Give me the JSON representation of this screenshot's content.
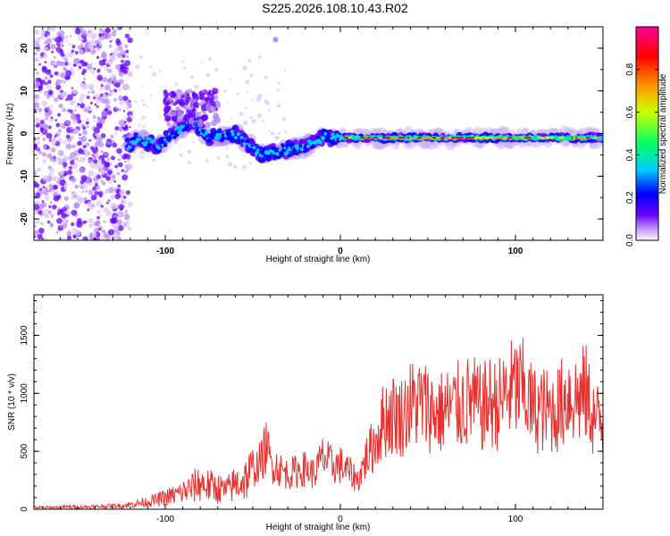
{
  "title": "S225.2026.108.10.43.R02",
  "chart_data": [
    {
      "type": "heatmap",
      "id": "spectrogram",
      "xlabel": "Height of straight line (km)",
      "ylabel": "Frequency (Hz)",
      "xlim": [
        -175,
        150
      ],
      "ylim": [
        -25,
        25
      ],
      "xticks": [
        -100,
        0,
        100
      ],
      "xtick_labels": [
        "-100",
        "0",
        "100"
      ],
      "yticks": [
        -20,
        -10,
        0,
        10,
        20
      ],
      "ytick_labels": [
        "-20",
        "-10",
        "0",
        "10",
        "20"
      ],
      "colorbar": {
        "label": "Normalized spectral amplitude",
        "range": [
          0,
          1
        ],
        "ticks": [
          0.0,
          0.2,
          0.4,
          0.6,
          0.8
        ],
        "tick_labels": [
          "0.0",
          "0.2",
          "0.4",
          "0.6",
          "0.8"
        ],
        "colormap": [
          "#ffffff",
          "#cc99ff",
          "#6600ff",
          "#0000ff",
          "#00ccff",
          "#00ff66",
          "#ccff00",
          "#ff9900",
          "#ff0000",
          "#ff0099"
        ]
      },
      "ridge_frequency_profile": [
        {
          "x": -122,
          "f": -3
        },
        {
          "x": -115,
          "f": -1
        },
        {
          "x": -105,
          "f": -3
        },
        {
          "x": -95,
          "f": 0
        },
        {
          "x": -85,
          "f": 3
        },
        {
          "x": -75,
          "f": -1
        },
        {
          "x": -60,
          "f": 0
        },
        {
          "x": -45,
          "f": -5
        },
        {
          "x": -35,
          "f": -4
        },
        {
          "x": -20,
          "f": -3
        },
        {
          "x": -10,
          "f": -1
        },
        {
          "x": 0,
          "f": -1
        },
        {
          "x": 20,
          "f": -1
        },
        {
          "x": 50,
          "f": -1
        },
        {
          "x": 80,
          "f": -1
        },
        {
          "x": 110,
          "f": -1
        },
        {
          "x": 130,
          "f": -1
        },
        {
          "x": 150,
          "f": -1
        }
      ]
    },
    {
      "type": "line",
      "id": "snr",
      "xlabel": "Height of straight line (km)",
      "ylabel": "SNR (10 * v/v)",
      "xlim": [
        -175,
        150
      ],
      "ylim": [
        0,
        1850
      ],
      "xticks": [
        -100,
        0,
        100
      ],
      "xtick_labels": [
        "-100",
        "0",
        "100"
      ],
      "yticks": [
        0,
        500,
        1000,
        1500
      ],
      "ytick_labels": [
        "0",
        "500",
        "1000",
        "1500"
      ],
      "color": "#e8312f",
      "series": [
        {
          "name": "SNR",
          "x": [
            -175,
            -165,
            -155,
            -145,
            -135,
            -125,
            -115,
            -105,
            -95,
            -85,
            -80,
            -75,
            -70,
            -65,
            -60,
            -55,
            -50,
            -45,
            -42,
            -40,
            -37,
            -35,
            -30,
            -25,
            -20,
            -15,
            -10,
            -5,
            0,
            5,
            10,
            15,
            20,
            25,
            30,
            35,
            40,
            45,
            50,
            55,
            60,
            65,
            70,
            75,
            80,
            85,
            90,
            95,
            100,
            105,
            110,
            115,
            120,
            125,
            130,
            135,
            140,
            145,
            150
          ],
          "values": [
            15,
            15,
            20,
            20,
            25,
            30,
            50,
            80,
            120,
            180,
            230,
            200,
            180,
            160,
            220,
            250,
            330,
            420,
            560,
            400,
            380,
            350,
            300,
            330,
            350,
            300,
            450,
            380,
            380,
            320,
            250,
            450,
            580,
            780,
            820,
            800,
            900,
            920,
            880,
            820,
            850,
            880,
            900,
            940,
            860,
            920,
            900,
            1000,
            1040,
            1020,
            860,
            860,
            840,
            870,
            1000,
            950,
            1000,
            780,
            750
          ]
        }
      ]
    }
  ]
}
